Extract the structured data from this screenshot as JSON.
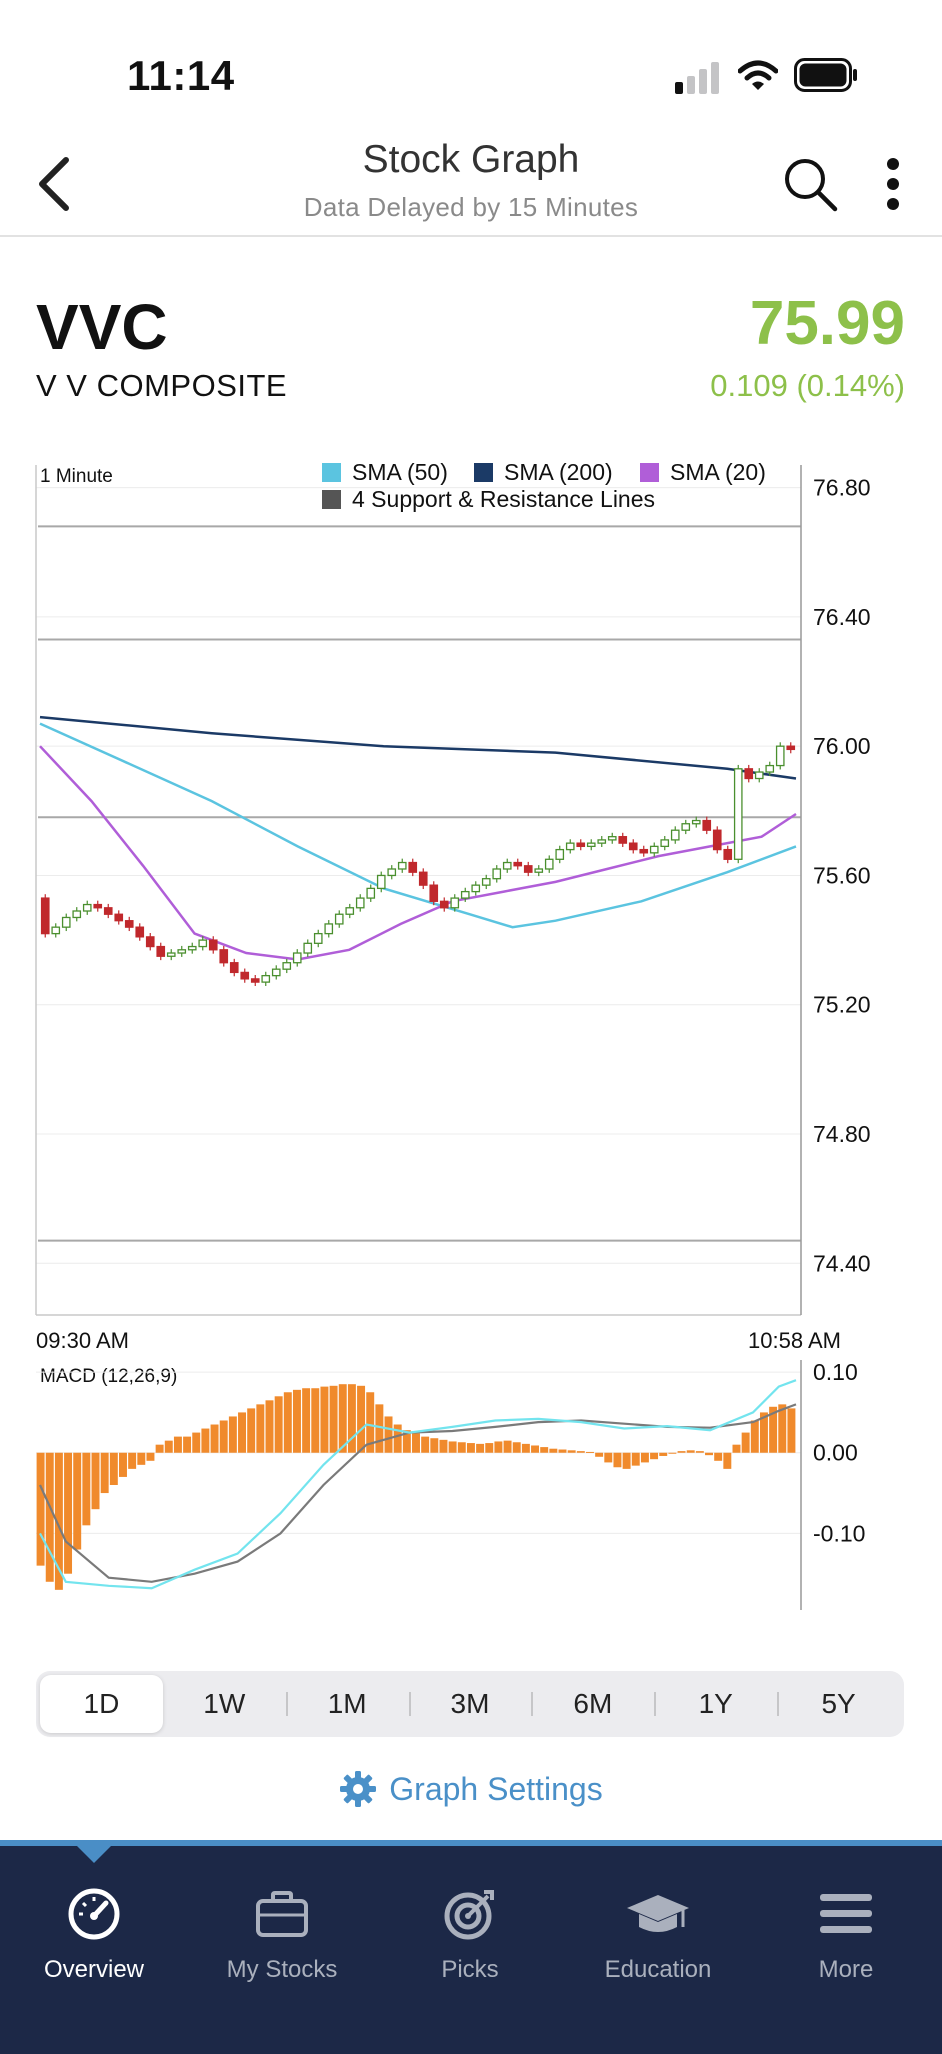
{
  "status_bar": {
    "time": "11:14"
  },
  "nav": {
    "title": "Stock Graph",
    "subtitle": "Data Delayed by 15 Minutes"
  },
  "quote": {
    "ticker": "VVC",
    "company": "V V COMPOSITE",
    "price": "75.99",
    "change": "0.109 (0.14%)",
    "price_color": "#8dc04a"
  },
  "chart_data": [
    {
      "type": "candlestick",
      "interval_label": "1 Minute",
      "legend": [
        {
          "name": "SMA (50)",
          "color": "#5bc4e0"
        },
        {
          "name": "SMA (200)",
          "color": "#1b3a66"
        },
        {
          "name": "SMA (20)",
          "color": "#b05ed8"
        },
        {
          "name": "4 Support & Resistance Lines",
          "color": "#555555"
        }
      ],
      "y_ticks": [
        "76.80",
        "76.40",
        "76.00",
        "75.60",
        "75.20",
        "74.80",
        "74.40"
      ],
      "ylim": [
        74.24,
        76.87
      ],
      "x_start_label": "09:30 AM",
      "x_end_label": "10:58 AM",
      "x_range_minutes": [
        0,
        88
      ],
      "support_resistance": [
        76.68,
        76.33,
        75.78,
        74.47
      ],
      "sma50": {
        "x": [
          0,
          10,
          20,
          30,
          40,
          50,
          55,
          60,
          70,
          80,
          88
        ],
        "y": [
          76.07,
          75.95,
          75.83,
          75.69,
          75.56,
          75.48,
          75.44,
          75.46,
          75.52,
          75.61,
          75.69
        ]
      },
      "sma200": {
        "x": [
          0,
          20,
          40,
          60,
          80,
          88
        ],
        "y": [
          76.09,
          76.04,
          76.0,
          75.98,
          75.93,
          75.9
        ]
      },
      "sma20": {
        "x": [
          0,
          6,
          12,
          18,
          24,
          30,
          36,
          42,
          48,
          54,
          60,
          66,
          72,
          78,
          84,
          88
        ],
        "y": [
          76.0,
          75.83,
          75.63,
          75.42,
          75.36,
          75.34,
          75.37,
          75.45,
          75.52,
          75.55,
          75.58,
          75.62,
          75.66,
          75.69,
          75.72,
          75.79
        ]
      },
      "close": [
        75.42,
        75.44,
        75.47,
        75.49,
        75.51,
        75.5,
        75.48,
        75.46,
        75.44,
        75.41,
        75.38,
        75.35,
        75.36,
        75.37,
        75.38,
        75.4,
        75.37,
        75.33,
        75.3,
        75.28,
        75.27,
        75.29,
        75.31,
        75.33,
        75.36,
        75.39,
        75.42,
        75.45,
        75.48,
        75.5,
        75.53,
        75.56,
        75.6,
        75.62,
        75.64,
        75.61,
        75.57,
        75.52,
        75.5,
        75.53,
        75.55,
        75.57,
        75.59,
        75.62,
        75.64,
        75.63,
        75.61,
        75.62,
        75.65,
        75.68,
        75.7,
        75.69,
        75.7,
        75.71,
        75.72,
        75.7,
        75.68,
        75.67,
        75.69,
        75.71,
        75.74,
        75.76,
        75.77,
        75.74,
        75.68,
        75.65,
        75.93,
        75.9,
        75.92,
        75.94,
        76.0,
        75.99
      ],
      "up_color": "#4a8f2e",
      "down_color": "#c0282c"
    },
    {
      "type": "bar+line",
      "label": "MACD (12,26,9)",
      "y_ticks": [
        "0.10",
        "0.00",
        "-0.10"
      ],
      "ylim": [
        -0.195,
        0.115
      ],
      "histogram": [
        -0.14,
        -0.16,
        -0.17,
        -0.15,
        -0.12,
        -0.09,
        -0.07,
        -0.05,
        -0.04,
        -0.03,
        -0.02,
        -0.015,
        -0.01,
        0.01,
        0.015,
        0.02,
        0.02,
        0.025,
        0.03,
        0.035,
        0.04,
        0.045,
        0.05,
        0.055,
        0.06,
        0.065,
        0.07,
        0.075,
        0.078,
        0.08,
        0.08,
        0.082,
        0.083,
        0.085,
        0.085,
        0.083,
        0.075,
        0.06,
        0.045,
        0.035,
        0.028,
        0.024,
        0.02,
        0.018,
        0.016,
        0.014,
        0.013,
        0.012,
        0.011,
        0.012,
        0.014,
        0.015,
        0.013,
        0.011,
        0.009,
        0.007,
        0.005,
        0.004,
        0.003,
        0.002,
        0.001,
        -0.005,
        -0.012,
        -0.018,
        -0.02,
        -0.016,
        -0.012,
        -0.008,
        -0.004,
        0.0,
        0.002,
        0.003,
        0.002,
        -0.003,
        -0.01,
        -0.02,
        0.01,
        0.025,
        0.04,
        0.05,
        0.057,
        0.06,
        0.055
      ],
      "macd_line": {
        "x": [
          0,
          3,
          8,
          13,
          18,
          23,
          28,
          33,
          38,
          43,
          48,
          53,
          58,
          63,
          68,
          73,
          78,
          83,
          86,
          88
        ],
        "y": [
          -0.1,
          -0.16,
          -0.165,
          -0.168,
          -0.145,
          -0.125,
          -0.075,
          -0.015,
          0.035,
          0.025,
          0.032,
          0.04,
          0.042,
          0.038,
          0.03,
          0.033,
          0.028,
          0.05,
          0.082,
          0.09
        ]
      },
      "signal_line": {
        "x": [
          0,
          3,
          8,
          13,
          18,
          23,
          28,
          33,
          38,
          43,
          48,
          53,
          58,
          63,
          68,
          73,
          78,
          83,
          86,
          88
        ],
        "y": [
          -0.04,
          -0.11,
          -0.155,
          -0.16,
          -0.15,
          -0.135,
          -0.1,
          -0.04,
          0.01,
          0.025,
          0.027,
          0.032,
          0.038,
          0.04,
          0.036,
          0.032,
          0.031,
          0.038,
          0.052,
          0.06
        ]
      },
      "histogram_color": "#f08a2c",
      "macd_color": "#73e4ee",
      "signal_color": "#7a7a7a"
    }
  ],
  "ranges": [
    "1D",
    "1W",
    "1M",
    "3M",
    "6M",
    "1Y",
    "5Y"
  ],
  "active_range": "1D",
  "settings_label": "Graph Settings",
  "tabs": [
    {
      "label": "Overview",
      "icon": "speedometer-icon",
      "active": true
    },
    {
      "label": "My Stocks",
      "icon": "briefcase-icon",
      "active": false
    },
    {
      "label": "Picks",
      "icon": "target-icon",
      "active": false
    },
    {
      "label": "Education",
      "icon": "graduation-cap-icon",
      "active": false
    },
    {
      "label": "More",
      "icon": "hamburger-menu-icon",
      "active": false
    }
  ]
}
